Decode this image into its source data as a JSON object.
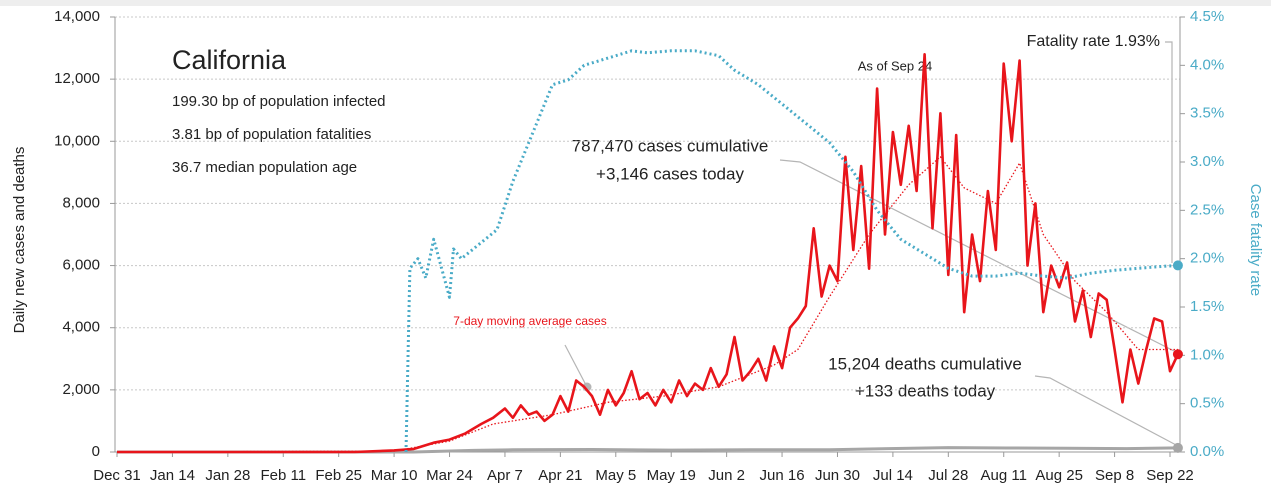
{
  "chart_data": {
    "type": "line",
    "title": "California",
    "stats": [
      "199.30 bp of population infected",
      "3.81 bp of population fatalities",
      "36.7 median population age"
    ],
    "as_of": "As of Sep 24",
    "fatality_label": "Fatality rate 1.93%",
    "cases_note": [
      "787,470 cases cumulative",
      "+3,146 cases today"
    ],
    "deaths_note": [
      "15,204 deaths cumulative",
      "+133 deaths today"
    ],
    "ylabel": "Daily new cases and deaths",
    "y2label": "Case fatality rate",
    "xlim": [
      0,
      268
    ],
    "xticks": [
      {
        "value": 0,
        "label": "Dec 31"
      },
      {
        "value": 14,
        "label": "Jan 14"
      },
      {
        "value": 28,
        "label": "Jan 28"
      },
      {
        "value": 42,
        "label": "Feb 11"
      },
      {
        "value": 56,
        "label": "Feb 25"
      },
      {
        "value": 70,
        "label": "Mar 10"
      },
      {
        "value": 84,
        "label": "Mar 24"
      },
      {
        "value": 98,
        "label": "Apr 7"
      },
      {
        "value": 112,
        "label": "Apr 21"
      },
      {
        "value": 126,
        "label": "May 5"
      },
      {
        "value": 140,
        "label": "May 19"
      },
      {
        "value": 154,
        "label": "Jun 2"
      },
      {
        "value": 168,
        "label": "Jun 16"
      },
      {
        "value": 182,
        "label": "Jun 30"
      },
      {
        "value": 196,
        "label": "Jul 14"
      },
      {
        "value": 210,
        "label": "Jul 28"
      },
      {
        "value": 224,
        "label": "Aug 11"
      },
      {
        "value": 238,
        "label": "Aug 25"
      },
      {
        "value": 252,
        "label": "Sep 8"
      },
      {
        "value": 266,
        "label": "Sep 22"
      }
    ],
    "ylim": [
      0,
      14000
    ],
    "yticks": [
      0,
      {
        "value": 2000,
        "label": "2,000"
      },
      {
        "value": 4000,
        "label": "4,000"
      },
      {
        "value": 6000,
        "label": "6,000"
      },
      {
        "value": 8000,
        "label": "8,000"
      },
      {
        "value": 10000,
        "label": "10,000"
      },
      {
        "value": 12000,
        "label": "12,000"
      },
      {
        "value": 14000,
        "label": "14,000"
      }
    ],
    "y2lim": [
      0,
      4.5
    ],
    "y2ticks": [
      {
        "value": 0,
        "label": "0.0%"
      },
      {
        "value": 0.5,
        "label": "0.5%"
      },
      {
        "value": 1,
        "label": "1.0%"
      },
      {
        "value": 1.5,
        "label": "1.5%"
      },
      {
        "value": 2,
        "label": "2.0%"
      },
      {
        "value": 2.5,
        "label": "2.5%"
      },
      {
        "value": 3,
        "label": "3.0%"
      },
      {
        "value": 3.5,
        "label": "3.5%"
      },
      {
        "value": 4,
        "label": "4.0%"
      },
      {
        "value": 4.5,
        "label": "4.5%"
      }
    ],
    "grid": true,
    "series": [
      {
        "color": "#a6a6a6",
        "style": "solid",
        "x": [
          0,
          75,
          90,
          100,
          120,
          140,
          160,
          180,
          195,
          210,
          225,
          240,
          255,
          268
        ],
        "values": [
          0,
          0,
          50,
          70,
          80,
          60,
          70,
          70,
          110,
          140,
          130,
          120,
          110,
          133
        ]
      },
      {
        "name": "7-day moving average cases",
        "color": "#e8151b",
        "style": "dotted",
        "x": [
          0,
          70,
          84,
          95,
          110,
          124,
          138,
          152,
          166,
          172,
          180,
          190,
          200,
          208,
          214,
          222,
          228,
          234,
          242,
          250,
          258,
          268
        ],
        "values": [
          0,
          30,
          350,
          900,
          1200,
          1600,
          1800,
          2100,
          2800,
          3300,
          5000,
          7000,
          8600,
          9500,
          8500,
          8000,
          9300,
          7000,
          5500,
          4500,
          3300,
          3300
        ]
      },
      {
        "color": "#e8151b",
        "style": "solid",
        "x": [
          0,
          60,
          70,
          75,
          80,
          84,
          88,
          92,
          95,
          98,
          100,
          102,
          104,
          106,
          108,
          110,
          112,
          114,
          116,
          118,
          120,
          122,
          124,
          126,
          128,
          130,
          132,
          134,
          136,
          138,
          140,
          142,
          144,
          146,
          148,
          150,
          152,
          154,
          156,
          158,
          160,
          162,
          164,
          166,
          168,
          170,
          172,
          174,
          176,
          178,
          180,
          182,
          184,
          186,
          188,
          190,
          192,
          194,
          196,
          198,
          200,
          202,
          204,
          206,
          208,
          210,
          212,
          214,
          216,
          218,
          220,
          222,
          224,
          226,
          228,
          230,
          232,
          234,
          236,
          238,
          240,
          242,
          244,
          246,
          248,
          250,
          252,
          254,
          256,
          258,
          260,
          262,
          264,
          266,
          268
        ],
        "values": [
          0,
          0,
          50,
          100,
          300,
          400,
          600,
          900,
          1100,
          1400,
          1100,
          1500,
          1200,
          1300,
          1000,
          1200,
          1800,
          1300,
          2300,
          2100,
          1800,
          1200,
          2000,
          1500,
          1900,
          2600,
          1700,
          1900,
          1500,
          2000,
          1600,
          2300,
          1800,
          2200,
          2000,
          2700,
          2100,
          2500,
          3700,
          2300,
          2600,
          3000,
          2300,
          3400,
          2700,
          4000,
          4300,
          4700,
          7200,
          5000,
          6000,
          5500,
          9500,
          6500,
          9200,
          5900,
          11700,
          7000,
          10300,
          8600,
          10500,
          8400,
          12800,
          7200,
          10900,
          5700,
          10200,
          4500,
          7000,
          5500,
          8400,
          6500,
          12500,
          10000,
          12600,
          6000,
          8000,
          4500,
          6000,
          5300,
          6100,
          4200,
          5200,
          3700,
          5100,
          4900,
          3300,
          1600,
          3300,
          2200,
          3300,
          4300,
          4200,
          2600,
          3146
        ]
      },
      {
        "color": "#4aabc7",
        "style": "dotted",
        "axis": "y2",
        "x": [
          73,
          74,
          76,
          78,
          80,
          82,
          84,
          85,
          87,
          90,
          93,
          96,
          100,
          105,
          110,
          114,
          118,
          122,
          126,
          130,
          134,
          140,
          146,
          152,
          156,
          162,
          168,
          174,
          180,
          186,
          192,
          198,
          204,
          210,
          216,
          222,
          228,
          234,
          240,
          246,
          252,
          258,
          264,
          268
        ],
        "values": [
          0,
          1.9,
          2.0,
          1.8,
          2.2,
          1.9,
          1.6,
          2.1,
          2.0,
          2.1,
          2.2,
          2.3,
          2.8,
          3.3,
          3.8,
          3.85,
          4.0,
          4.05,
          4.1,
          4.15,
          4.13,
          4.15,
          4.15,
          4.1,
          3.95,
          3.8,
          3.6,
          3.4,
          3.2,
          2.9,
          2.5,
          2.2,
          2.05,
          1.9,
          1.82,
          1.82,
          1.85,
          1.82,
          1.8,
          1.85,
          1.88,
          1.9,
          1.92,
          1.93
        ]
      }
    ]
  }
}
